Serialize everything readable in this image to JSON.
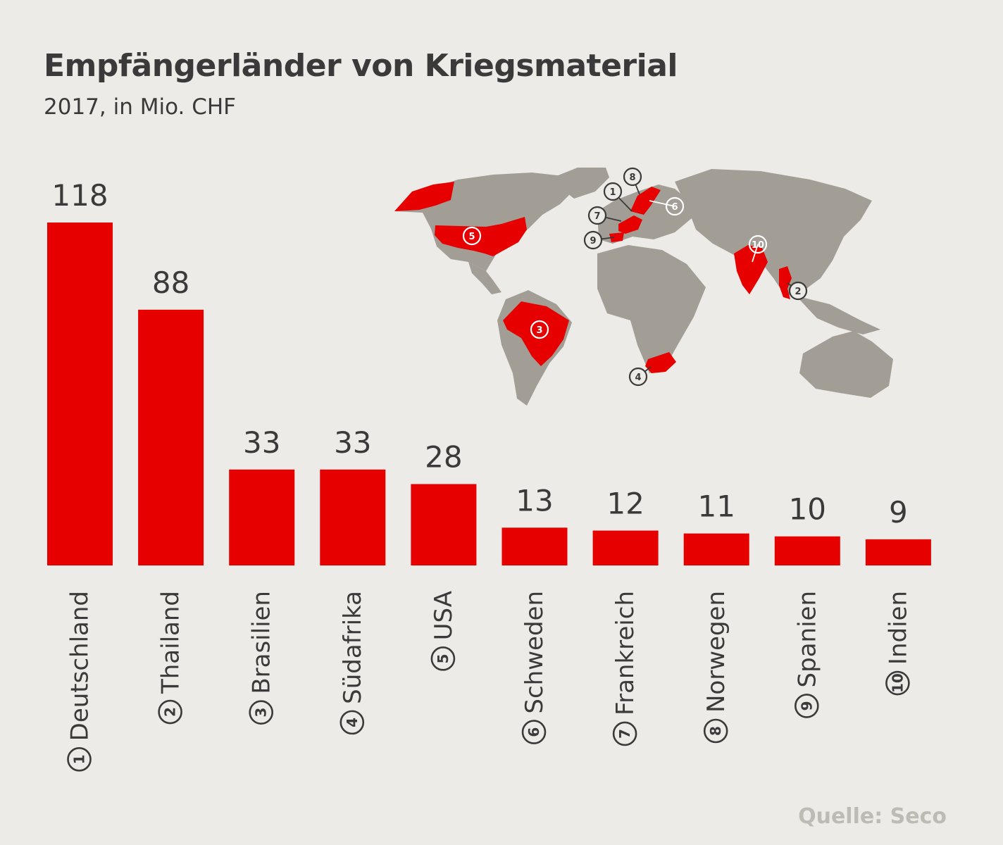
{
  "chart_data": {
    "type": "bar",
    "title": "Empfängerländer von Kriegsmaterial",
    "subtitle": "2017, in Mio. CHF",
    "unit": "Mio. CHF",
    "categories": [
      "Deutschland",
      "Thailand",
      "Brasilien",
      "Südafrika",
      "USA",
      "Schweden",
      "Frankreich",
      "Norwegen",
      "Spanien",
      "Indien"
    ],
    "ranks": [
      "1",
      "2",
      "3",
      "4",
      "5",
      "6",
      "7",
      "8",
      "9",
      "10"
    ],
    "values": [
      118,
      88,
      33,
      33,
      28,
      13,
      12,
      11,
      10,
      9
    ],
    "ylim": [
      0,
      118
    ],
    "bar_color": "#e60000",
    "grid": false,
    "legend": "none",
    "map_markers": [
      "1",
      "2",
      "3",
      "4",
      "5",
      "6",
      "7",
      "8",
      "9",
      "10"
    ]
  },
  "source": "Quelle: Seco",
  "colors": {
    "background": "#ecebe7",
    "land": "#a29e96",
    "highlight": "#e60000",
    "text": "#3a3a3a",
    "source_text": "#bdbbb4"
  }
}
